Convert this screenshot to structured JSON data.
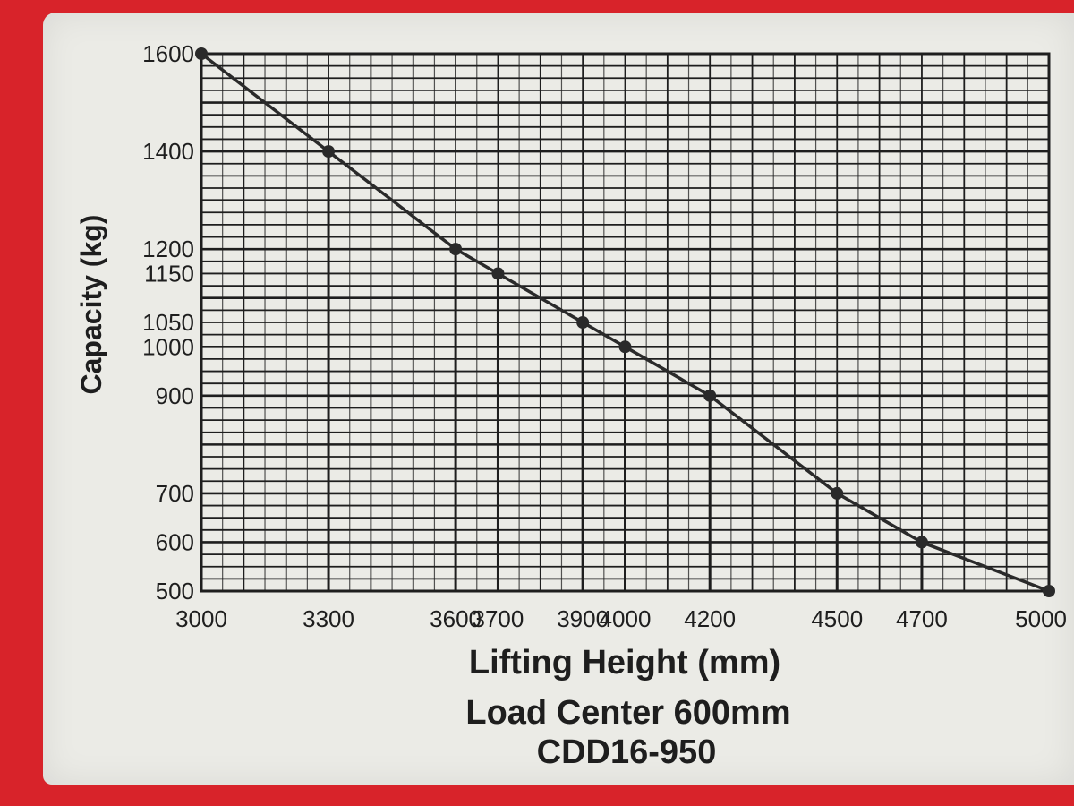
{
  "chart_data": {
    "type": "line",
    "xlabel": "Lifting Height (mm)",
    "ylabel": "Capacity (kg)",
    "subtitle_lines": [
      "Load Center 600mm",
      "CDD16-950"
    ],
    "xlim": [
      3000,
      5000
    ],
    "ylim": [
      500,
      1600
    ],
    "x_ticks": [
      "3000",
      "3300",
      "3600",
      "3700",
      "3900",
      "4000",
      "4200",
      "4500",
      "4700",
      "5000"
    ],
    "y_ticks": [
      "1600",
      "1400",
      "1200",
      "1150",
      "1050",
      "1000",
      "900",
      "700",
      "600",
      "500"
    ],
    "grid": true,
    "series": [
      {
        "x": [
          3000,
          3300,
          3600,
          3700,
          3900,
          4000,
          4200,
          4500,
          4700,
          5000
        ],
        "y": [
          1600,
          1400,
          1200,
          1150,
          1050,
          1000,
          900,
          700,
          600,
          500
        ]
      }
    ],
    "colors": {
      "line": "#2a2a2a",
      "grid": "#1e1e1e",
      "plate": "#ebebe6",
      "frame": "#d8232a"
    }
  }
}
